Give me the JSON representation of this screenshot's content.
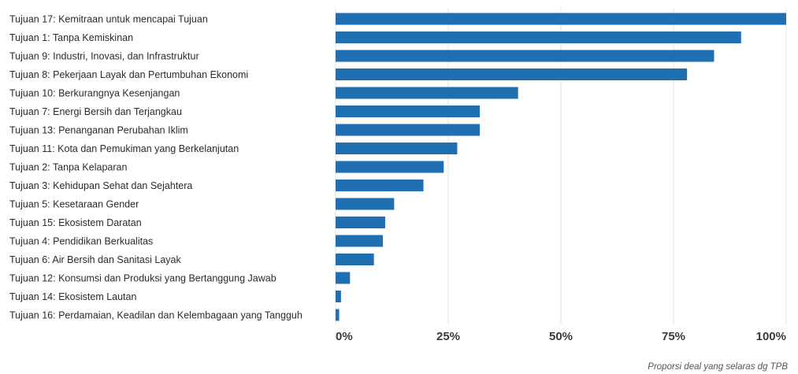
{
  "chart_data": {
    "type": "bar",
    "orientation": "horizontal",
    "categories": [
      "Tujuan 17: Kemitraan untuk mencapai Tujuan",
      "Tujuan 1: Tanpa Kemiskinan",
      "Tujuan 9: Industri, Inovasi, dan Infrastruktur",
      "Tujuan 8: Pekerjaan Layak dan Pertumbuhan Ekonomi",
      "Tujuan 10: Berkurangnya Kesenjangan",
      "Tujuan 7: Energi Bersih dan Terjangkau",
      "Tujuan 13: Penanganan Perubahan Iklim",
      "Tujuan 11: Kota dan Pemukiman yang Berkelanjutan",
      "Tujuan 2: Tanpa Kelaparan",
      "Tujuan 3: Kehidupan Sehat dan Sejahtera",
      "Tujuan 5: Kesetaraan Gender",
      "Tujuan 15: Ekosistem Daratan",
      "Tujuan 4: Pendidikan Berkualitas",
      "Tujuan 6: Air Bersih dan Sanitasi Layak",
      "Tujuan 12: Konsumsi dan Produksi yang Bertanggung Jawab",
      "Tujuan 14: Ekosistem Lautan",
      "Tujuan 16: Perdamaian, Keadilan dan Kelembagaan yang Tangguh"
    ],
    "values": [
      100,
      90,
      84,
      78,
      40.5,
      32,
      32,
      27,
      24,
      19.5,
      13,
      11,
      10.5,
      8.5,
      3.2,
      1.2,
      0.8
    ],
    "xlim": [
      0,
      100
    ],
    "xticks": [
      0,
      25,
      50,
      75,
      100
    ],
    "xtick_labels": [
      "0%",
      "25%",
      "50%",
      "75%",
      "100%"
    ],
    "xlabel": "Proporsi deal yang selaras dg TPB",
    "ylabel": "",
    "title": "",
    "grid": "vertical",
    "bar_color": "#1f6fb2",
    "grid_color": "#e3e3e3"
  }
}
